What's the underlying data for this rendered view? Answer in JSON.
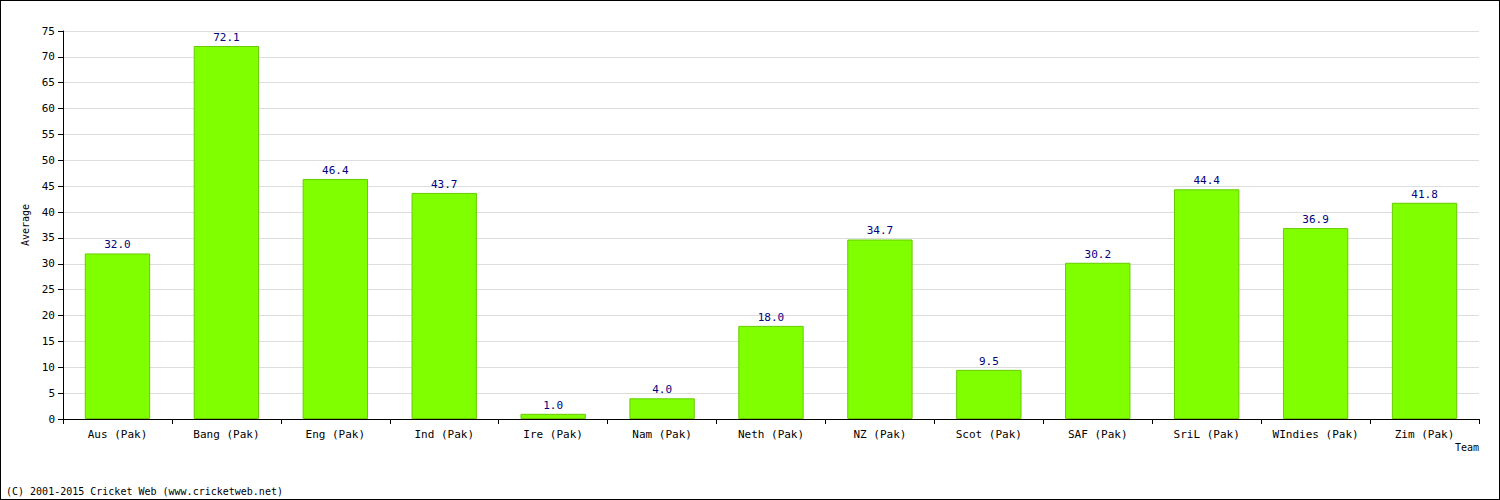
{
  "chart_data": {
    "type": "bar",
    "categories": [
      "Aus (Pak)",
      "Bang (Pak)",
      "Eng (Pak)",
      "Ind (Pak)",
      "Ire (Pak)",
      "Nam (Pak)",
      "Neth (Pak)",
      "NZ (Pak)",
      "Scot (Pak)",
      "SAF (Pak)",
      "SriL (Pak)",
      "WIndies (Pak)",
      "Zim (Pak)"
    ],
    "values": [
      32.0,
      72.1,
      46.4,
      43.7,
      1.0,
      4.0,
      18.0,
      34.7,
      9.5,
      30.2,
      44.4,
      36.9,
      41.8
    ],
    "value_labels": [
      "32.0",
      "72.1",
      "46.4",
      "43.7",
      "1.0",
      "4.0",
      "18.0",
      "34.7",
      "9.5",
      "30.2",
      "44.4",
      "36.9",
      "41.8"
    ],
    "color": "#7fff00",
    "x_label": "Team",
    "y_label": "Average",
    "annotations": [
      "(C) 2001-2015 Cricket Web (www.cricketweb.net)"
    ],
    "ylim": [
      0,
      75
    ],
    "yticks": [
      0,
      5,
      10,
      15,
      20,
      25,
      30,
      35,
      40,
      45,
      50,
      55,
      60,
      65,
      70,
      75
    ],
    "grid": true,
    "data_labels": true
  }
}
